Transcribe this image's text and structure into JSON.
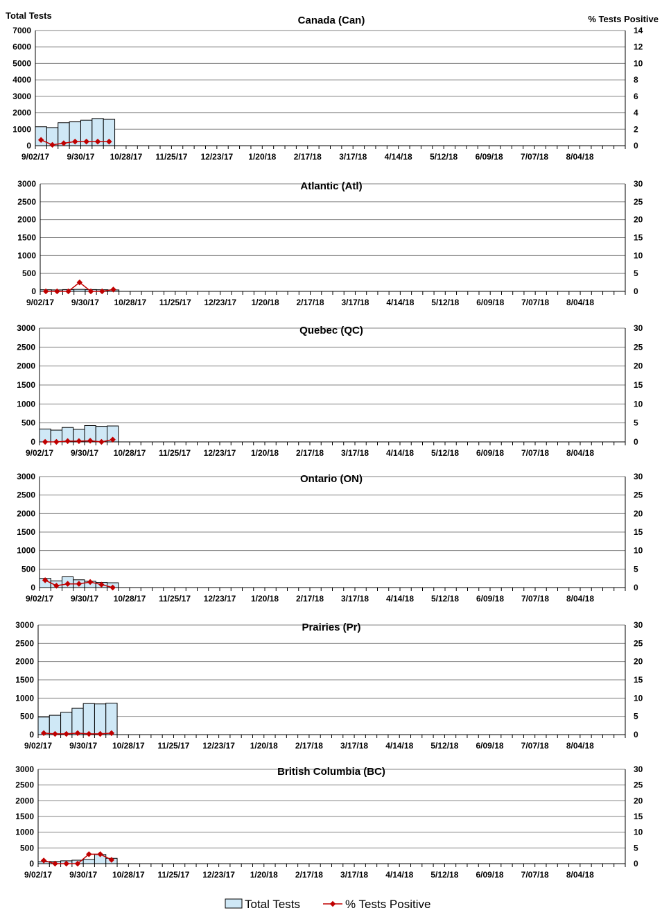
{
  "figure": {
    "left_axis_title": "Total Tests",
    "right_axis_title": "%  Tests Positive"
  },
  "legend": {
    "bars_label": "Total Tests",
    "line_label": "% Tests Positive"
  },
  "colors": {
    "bar_fill": "#cfe8f6",
    "bar_stroke": "#000000",
    "line": "#c00000",
    "grid": "#808080"
  },
  "chart_data": [
    {
      "type": "bar+line",
      "title": "Canada (Can)",
      "y_left": {
        "min": 0,
        "max": 7000,
        "step": 1000
      },
      "y_right": {
        "min": 0,
        "max": 14,
        "step": 2
      },
      "x_tick_labels": [
        "9/02/17",
        "9/30/17",
        "10/28/17",
        "11/25/17",
        "12/23/17",
        "1/20/18",
        "2/17/18",
        "3/17/18",
        "4/14/18",
        "5/12/18",
        "6/09/18",
        "7/07/18",
        "8/04/18"
      ],
      "weeks_total": 52,
      "total_tests": [
        1150,
        1100,
        1400,
        1450,
        1550,
        1650,
        1600
      ],
      "pct_positive": [
        0.7,
        0.1,
        0.3,
        0.5,
        0.5,
        0.5,
        0.5
      ],
      "grid": true
    },
    {
      "type": "bar+line",
      "title": "Atlantic (Atl)",
      "y_left": {
        "min": 0,
        "max": 3000,
        "step": 500
      },
      "y_right": {
        "min": 0,
        "max": 30,
        "step": 5
      },
      "x_tick_labels": [
        "9/02/17",
        "9/30/17",
        "10/28/17",
        "11/25/17",
        "12/23/17",
        "1/20/18",
        "2/17/18",
        "3/17/18",
        "4/14/18",
        "5/12/18",
        "6/09/18",
        "7/07/18",
        "8/04/18"
      ],
      "weeks_total": 52,
      "total_tests": [
        45,
        40,
        50,
        55,
        50,
        45,
        40
      ],
      "pct_positive": [
        0,
        0,
        0,
        2.5,
        0,
        0,
        0.5
      ],
      "grid": true
    },
    {
      "type": "bar+line",
      "title": "Quebec (QC)",
      "y_left": {
        "min": 0,
        "max": 3000,
        "step": 500
      },
      "y_right": {
        "min": 0,
        "max": 30,
        "step": 5
      },
      "x_tick_labels": [
        "9/02/17",
        "9/30/17",
        "10/28/17",
        "11/25/17",
        "12/23/17",
        "1/20/18",
        "2/17/18",
        "3/17/18",
        "4/14/18",
        "5/12/18",
        "6/09/18",
        "7/07/18",
        "8/04/18"
      ],
      "weeks_total": 52,
      "total_tests": [
        340,
        310,
        380,
        330,
        430,
        410,
        420
      ],
      "pct_positive": [
        0,
        0,
        0.2,
        0.2,
        0.3,
        0,
        0.6
      ],
      "grid": true
    },
    {
      "type": "bar+line",
      "title": "Ontario (ON)",
      "y_left": {
        "min": 0,
        "max": 3000,
        "step": 500
      },
      "y_right": {
        "min": 0,
        "max": 30,
        "step": 5
      },
      "x_tick_labels": [
        "9/02/17",
        "9/30/17",
        "10/28/17",
        "11/25/17",
        "12/23/17",
        "1/20/18",
        "2/17/18",
        "3/17/18",
        "4/14/18",
        "5/12/18",
        "6/09/18",
        "7/07/18",
        "8/04/18"
      ],
      "weeks_total": 52,
      "total_tests": [
        250,
        180,
        290,
        210,
        170,
        140,
        130
      ],
      "pct_positive": [
        2.0,
        0.5,
        1.0,
        1.0,
        1.5,
        0.8,
        0
      ],
      "grid": true
    },
    {
      "type": "bar+line",
      "title": "Prairies (Pr)",
      "y_left": {
        "min": 0,
        "max": 3000,
        "step": 500
      },
      "y_right": {
        "min": 0,
        "max": 30,
        "step": 5
      },
      "x_tick_labels": [
        "9/02/17",
        "9/30/17",
        "10/28/17",
        "11/25/17",
        "12/23/17",
        "1/20/18",
        "2/17/18",
        "3/17/18",
        "4/14/18",
        "5/12/18",
        "6/09/18",
        "7/07/18",
        "8/04/18"
      ],
      "weeks_total": 52,
      "total_tests": [
        480,
        530,
        610,
        720,
        850,
        840,
        860
      ],
      "pct_positive": [
        0.4,
        0.2,
        0.2,
        0.4,
        0.2,
        0.2,
        0.4
      ],
      "grid": true
    },
    {
      "type": "bar+line",
      "title": "British Columbia (BC)",
      "y_left": {
        "min": 0,
        "max": 3000,
        "step": 500
      },
      "y_right": {
        "min": 0,
        "max": 30,
        "step": 5
      },
      "x_tick_labels": [
        "9/02/17",
        "9/30/17",
        "10/28/17",
        "11/25/17",
        "12/23/17",
        "1/20/18",
        "2/17/18",
        "3/17/18",
        "4/14/18",
        "5/12/18",
        "6/09/18",
        "7/07/18",
        "8/04/18"
      ],
      "weeks_total": 52,
      "total_tests": [
        60,
        70,
        90,
        110,
        130,
        290,
        170
      ],
      "pct_positive": [
        1.0,
        0,
        0,
        0,
        3.0,
        3.0,
        1.2
      ],
      "grid": true
    }
  ]
}
